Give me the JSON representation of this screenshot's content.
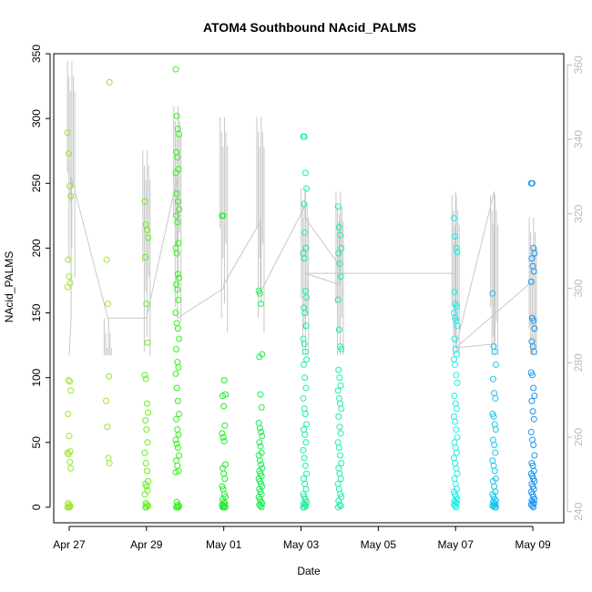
{
  "chart_data": {
    "type": "scatter",
    "title": "ATOM4 Southbound NAcid_PALMS",
    "xlabel": "Date",
    "ylabel": "NAcid_PALMS",
    "x_ticks": [
      "Apr 27",
      "Apr 29",
      "May 01",
      "May 03",
      "May 05",
      "May 07",
      "May 09"
    ],
    "x_tick_days": [
      0,
      2,
      4,
      6,
      8,
      10,
      12
    ],
    "xlim_days": [
      -0.4,
      12.8
    ],
    "ylim": [
      -12,
      350
    ],
    "y_ticks": [
      0,
      50,
      100,
      150,
      200,
      250,
      300,
      350
    ],
    "y2_label": "",
    "y2_ticks": [
      240,
      260,
      280,
      300,
      320,
      340,
      360
    ],
    "y2lim": [
      237,
      363
    ],
    "grid": false,
    "series": [
      {
        "color": "#9ae62e",
        "x": [
          0.0,
          0.0,
          0.0,
          0.0,
          0.0,
          0.0,
          0.0,
          0.0,
          0.0,
          0.0,
          0.0,
          0.0,
          0.0,
          0.0,
          0.0,
          0.0,
          0.0,
          0.0,
          0.0,
          0.0,
          0.0,
          0.0,
          0.0,
          0.0,
          1.0,
          1.0,
          1.0,
          1.0,
          1.0,
          1.0,
          1.0,
          1.0
        ],
        "y": [
          289,
          273,
          248,
          240,
          191,
          178,
          173,
          170,
          98,
          97,
          90,
          72,
          55,
          43,
          42,
          41,
          35,
          30,
          3,
          2,
          1,
          0,
          0,
          0,
          328,
          191,
          157,
          101,
          82,
          62,
          38,
          34
        ]
      },
      {
        "color": "#66ee1a",
        "x": [
          2.0,
          2.0,
          2.0,
          2.0,
          2.0,
          2.0,
          2.0,
          2.0,
          2.0,
          2.0,
          2.0,
          2.0,
          2.0,
          2.0,
          2.0,
          2.0,
          2.0,
          2.0,
          2.0,
          2.0,
          2.0,
          2.0,
          2.0,
          2.0,
          2.0,
          2.0,
          2.0
        ],
        "y": [
          236,
          218,
          214,
          208,
          193,
          157,
          127,
          102,
          99,
          80,
          73,
          67,
          60,
          50,
          42,
          34,
          28,
          20,
          18,
          16,
          13,
          10,
          3,
          2,
          1,
          0,
          0
        ]
      },
      {
        "color": "#33f01a",
        "x": [
          2.8,
          2.8,
          2.8,
          2.8,
          2.8,
          2.8,
          2.8,
          2.8,
          2.8,
          2.8,
          2.8,
          2.8,
          2.8,
          2.8,
          2.8,
          2.8,
          2.8,
          2.8,
          2.8,
          2.8,
          2.8,
          2.8,
          2.8,
          2.8,
          2.8,
          2.8,
          2.8,
          2.8,
          2.8,
          2.8,
          2.8,
          2.8,
          2.8,
          2.8,
          2.8,
          2.8,
          2.8,
          2.8,
          2.8,
          2.8,
          2.8,
          2.8,
          2.8,
          2.8,
          2.8,
          2.8,
          2.8,
          2.8,
          2.8
        ],
        "y": [
          338,
          302,
          292,
          288,
          274,
          270,
          261,
          258,
          242,
          236,
          230,
          225,
          220,
          204,
          200,
          196,
          180,
          177,
          172,
          168,
          160,
          150,
          142,
          138,
          130,
          122,
          112,
          108,
          103,
          92,
          82,
          72,
          68,
          60,
          56,
          52,
          49,
          46,
          40,
          36,
          32,
          28,
          27,
          4,
          2,
          1,
          0,
          0,
          0
        ]
      },
      {
        "color": "#1aef2a",
        "x": [
          4.0,
          4.0,
          4.0,
          4.0,
          4.0,
          4.0,
          4.0,
          4.0,
          4.0,
          4.0,
          4.0,
          4.0,
          4.0,
          4.0,
          4.0,
          4.0,
          4.0,
          4.0,
          4.0,
          4.0,
          4.0,
          4.0,
          4.0,
          4.0,
          4.0,
          4.0,
          4.0
        ],
        "y": [
          225,
          225,
          98,
          87,
          86,
          78,
          63,
          57,
          54,
          51,
          33,
          30,
          26,
          22,
          16,
          14,
          10,
          8,
          6,
          4,
          3,
          2,
          1,
          1,
          0,
          0,
          0
        ]
      },
      {
        "color": "#1aee50",
        "x": [
          4.95,
          4.95,
          4.95,
          4.95,
          4.95,
          4.95,
          4.95,
          4.95,
          4.95,
          4.95,
          4.95,
          4.95,
          4.95,
          4.95,
          4.95,
          4.95,
          4.95,
          4.95,
          4.95,
          4.95,
          4.95,
          4.95,
          4.95,
          4.95,
          4.95,
          4.95,
          4.95,
          4.95,
          4.95,
          4.95,
          4.95,
          4.95,
          4.95,
          4.95,
          4.95
        ],
        "y": [
          167,
          165,
          157,
          118,
          116,
          87,
          77,
          65,
          61,
          58,
          55,
          50,
          47,
          42,
          40,
          36,
          33,
          30,
          28,
          26,
          24,
          22,
          20,
          18,
          16,
          14,
          12,
          10,
          8,
          6,
          4,
          3,
          2,
          1,
          0
        ]
      },
      {
        "color": "#1aee9a",
        "x": [
          6.1,
          6.1,
          6.1,
          6.1,
          6.1,
          6.1,
          6.1,
          6.1,
          6.1,
          6.1,
          6.1,
          6.1,
          6.1,
          6.1,
          6.1,
          6.1,
          6.1,
          6.1,
          6.1,
          6.1,
          6.1,
          6.1,
          6.1,
          6.1,
          6.1,
          6.1,
          6.1,
          6.1,
          6.1,
          6.1,
          6.1,
          6.1,
          6.1,
          6.1,
          6.1,
          6.1,
          6.1,
          6.1,
          6.1,
          6.1,
          6.1,
          6.1,
          6.1,
          6.1
        ],
        "y": [
          286,
          286,
          258,
          246,
          234,
          212,
          200,
          196,
          192,
          167,
          162,
          154,
          150,
          140,
          130,
          126,
          120,
          114,
          110,
          100,
          92,
          84,
          76,
          72,
          64,
          60,
          56,
          50,
          44,
          38,
          32,
          26,
          22,
          18,
          14,
          10,
          8,
          6,
          4,
          3,
          2,
          1,
          0,
          0
        ]
      },
      {
        "color": "#1aeeb0",
        "x": [
          7.0,
          7.0,
          7.0,
          7.0,
          7.0,
          7.0,
          7.0,
          7.0,
          7.0,
          7.0,
          7.0,
          7.0,
          7.0,
          7.0,
          7.0,
          7.0,
          7.0,
          7.0,
          7.0,
          7.0,
          7.0,
          7.0,
          7.0,
          7.0,
          7.0,
          7.0,
          7.0,
          7.0,
          7.0,
          7.0,
          7.0,
          7.0,
          7.0,
          7.0,
          7.0,
          7.0
        ],
        "y": [
          232,
          216,
          210,
          200,
          196,
          188,
          178,
          160,
          137,
          124,
          122,
          106,
          100,
          94,
          90,
          84,
          80,
          76,
          70,
          62,
          57,
          50,
          46,
          40,
          34,
          30,
          26,
          22,
          18,
          14,
          10,
          8,
          5,
          2,
          1,
          0
        ]
      },
      {
        "color": "#1aeee6",
        "x": [
          10.0,
          10.0,
          10.0,
          10.0,
          10.0,
          10.0,
          10.0,
          10.0,
          10.0,
          10.0,
          10.0,
          10.0,
          10.0,
          10.0,
          10.0,
          10.0,
          10.0,
          10.0,
          10.0,
          10.0,
          10.0,
          10.0,
          10.0,
          10.0,
          10.0,
          10.0,
          10.0,
          10.0,
          10.0,
          10.0,
          10.0,
          10.0,
          10.0,
          10.0,
          10.0,
          10.0,
          10.0,
          10.0,
          10.0,
          10.0,
          10.0,
          10.0,
          10.0,
          10.0,
          10.0
        ],
        "y": [
          223,
          209,
          200,
          197,
          166,
          157,
          155,
          150,
          146,
          144,
          140,
          130,
          122,
          118,
          114,
          110,
          102,
          96,
          86,
          80,
          76,
          70,
          66,
          60,
          54,
          50,
          46,
          42,
          38,
          34,
          30,
          26,
          22,
          18,
          14,
          12,
          10,
          8,
          6,
          5,
          4,
          3,
          2,
          1,
          0
        ]
      },
      {
        "color": "#1ac4ee",
        "x": [
          11.0,
          11.0,
          11.0,
          11.0,
          11.0,
          11.0,
          11.0,
          11.0,
          11.0,
          11.0,
          11.0,
          11.0,
          11.0,
          11.0,
          11.0,
          11.0,
          11.0,
          11.0,
          11.0,
          11.0,
          11.0,
          11.0,
          11.0,
          11.0,
          11.0,
          11.0,
          11.0,
          11.0,
          11.0,
          11.0,
          11.0,
          11.0
        ],
        "y": [
          165,
          124,
          120,
          110,
          99,
          88,
          84,
          72,
          70,
          64,
          60,
          52,
          48,
          42,
          36,
          32,
          28,
          22,
          20,
          16,
          12,
          10,
          8,
          6,
          5,
          4,
          3,
          2,
          1,
          1,
          0,
          0
        ]
      },
      {
        "color": "#1a96ee",
        "x": [
          12.0,
          12.0,
          12.0,
          12.0,
          12.0,
          12.0,
          12.0,
          12.0,
          12.0,
          12.0,
          12.0,
          12.0,
          12.0,
          12.0,
          12.0,
          12.0,
          12.0,
          12.0,
          12.0,
          12.0,
          12.0,
          12.0,
          12.0,
          12.0,
          12.0,
          12.0,
          12.0,
          12.0,
          12.0,
          12.0,
          12.0,
          12.0,
          12.0,
          12.0,
          12.0,
          12.0,
          12.0,
          12.0,
          12.0,
          12.0,
          12.0,
          12.0,
          12.0,
          12.0,
          12.0
        ],
        "y": [
          250,
          250,
          200,
          196,
          192,
          186,
          182,
          174,
          146,
          144,
          138,
          128,
          124,
          120,
          104,
          102,
          92,
          86,
          82,
          74,
          68,
          58,
          52,
          48,
          40,
          34,
          32,
          28,
          26,
          24,
          22,
          20,
          18,
          16,
          14,
          12,
          10,
          8,
          6,
          5,
          4,
          3,
          2,
          1,
          0
        ]
      }
    ],
    "secondary_series": {
      "color": "#c8c8c8",
      "x": [
        0.0,
        0.05,
        0.05,
        1.0,
        1.0,
        2.0,
        2.0,
        2.8,
        2.8,
        4.0,
        4.0,
        4.95,
        4.95,
        4.95,
        6.1,
        6.1,
        6.1,
        7.0,
        7.0,
        7.0,
        6.1,
        10.0,
        10.0,
        10.0,
        11.0,
        11.0,
        11.0,
        10.0,
        12.0,
        12.0
      ],
      "y": [
        282,
        292,
        330,
        292,
        292,
        292,
        292,
        330,
        292,
        300,
        301,
        318,
        300,
        299,
        322,
        326,
        319,
        306,
        320,
        301,
        304,
        304,
        326,
        284,
        285,
        292,
        326,
        284,
        302,
        301
      ],
      "visual_spikes": [
        {
          "x": 0.05,
          "top": 361
        },
        {
          "x": 1.0,
          "top": 292
        },
        {
          "x": 2.0,
          "top": 337
        },
        {
          "x": 2.8,
          "top": 349
        },
        {
          "x": 4.0,
          "top": 346
        },
        {
          "x": 4.95,
          "top": 346
        },
        {
          "x": 6.1,
          "top": 327
        },
        {
          "x": 7.0,
          "top": 326
        },
        {
          "x": 10.0,
          "top": 325
        },
        {
          "x": 11.0,
          "top": 325
        },
        {
          "x": 12.0,
          "top": 319
        }
      ]
    }
  }
}
